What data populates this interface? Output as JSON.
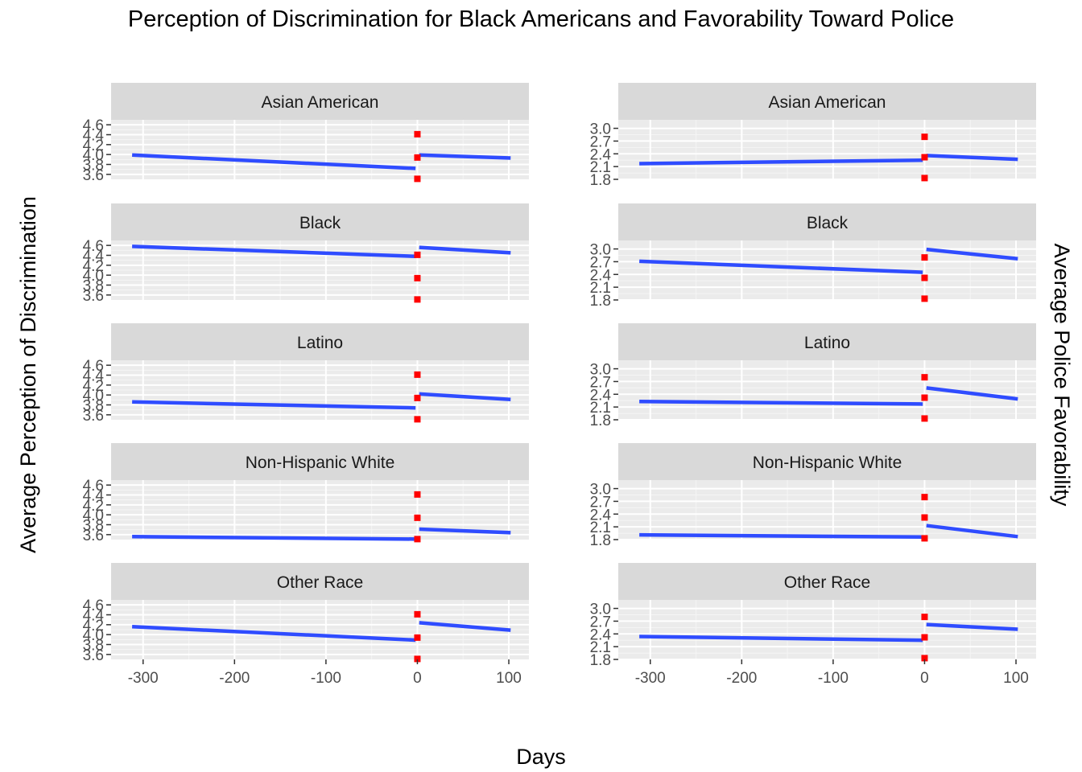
{
  "chart_data": {
    "type": "line",
    "title": "Perception of Discrimination for Black Americans and Favorability Toward Police",
    "xlabel": "Days",
    "x_ticks": [
      -300,
      -200,
      -100,
      0,
      100
    ],
    "xlim": [
      -335,
      122
    ],
    "series_color": "#2f4cff",
    "marker_color": "#ff0000",
    "panel_background": "#ebebeb",
    "strip_background": "#d9d9d9",
    "grid": true,
    "columns": [
      {
        "ylabel": "Average Perception of Discrimination",
        "ylabel_side": "left",
        "ylim": [
          3.5,
          4.7
        ],
        "y_ticks": [
          3.6,
          3.8,
          4.0,
          4.2,
          4.4,
          4.6
        ],
        "y_tick_labels": [
          "3.6",
          "3.8",
          "4.0",
          "4.2",
          "4.4",
          "4.6"
        ],
        "panels": [
          {
            "label": "Asian American",
            "pre": [
              [
                -312,
                3.99
              ],
              [
                -2,
                3.72
              ]
            ],
            "post": [
              [
                2,
                3.99
              ],
              [
                102,
                3.93
              ]
            ],
            "markers": [
              4.41,
              3.94,
              3.51
            ]
          },
          {
            "label": "Black",
            "pre": [
              [
                -312,
                4.58
              ],
              [
                -2,
                4.38
              ]
            ],
            "post": [
              [
                2,
                4.56
              ],
              [
                102,
                4.45
              ]
            ],
            "markers": [
              4.41,
              3.94,
              3.51
            ]
          },
          {
            "label": "Latino",
            "pre": [
              [
                -312,
                3.86
              ],
              [
                -2,
                3.74
              ]
            ],
            "post": [
              [
                2,
                4.02
              ],
              [
                102,
                3.91
              ]
            ],
            "markers": [
              4.41,
              3.94,
              3.51
            ]
          },
          {
            "label": "Non-Hispanic White",
            "pre": [
              [
                -312,
                3.56
              ],
              [
                -2,
                3.51
              ]
            ],
            "post": [
              [
                2,
                3.71
              ],
              [
                102,
                3.64
              ]
            ],
            "markers": [
              4.41,
              3.94,
              3.51
            ]
          },
          {
            "label": "Other Race",
            "pre": [
              [
                -312,
                4.16
              ],
              [
                -2,
                3.89
              ]
            ],
            "post": [
              [
                2,
                4.24
              ],
              [
                102,
                4.09
              ]
            ],
            "markers": [
              4.41,
              3.94,
              3.51
            ]
          }
        ]
      },
      {
        "ylabel": "Average Police Favorability",
        "ylabel_side": "right",
        "ylim": [
          1.8,
          3.2
        ],
        "y_ticks": [
          1.8,
          2.1,
          2.4,
          2.7,
          3.0
        ],
        "y_tick_labels": [
          "1.8",
          "2.1",
          "2.4",
          "2.7",
          "3.0"
        ],
        "panels": [
          {
            "label": "Asian American",
            "pre": [
              [
                -312,
                2.17
              ],
              [
                -2,
                2.25
              ]
            ],
            "post": [
              [
                2,
                2.36
              ],
              [
                102,
                2.27
              ]
            ],
            "markers": [
              2.8,
              2.32,
              1.83
            ]
          },
          {
            "label": "Black",
            "pre": [
              [
                -312,
                2.71
              ],
              [
                -2,
                2.45
              ]
            ],
            "post": [
              [
                2,
                2.99
              ],
              [
                102,
                2.77
              ]
            ],
            "markers": [
              2.8,
              2.32,
              1.83
            ]
          },
          {
            "label": "Latino",
            "pre": [
              [
                -312,
                2.23
              ],
              [
                -2,
                2.17
              ]
            ],
            "post": [
              [
                2,
                2.55
              ],
              [
                102,
                2.29
              ]
            ],
            "markers": [
              2.8,
              2.32,
              1.83
            ]
          },
          {
            "label": "Non-Hispanic White",
            "pre": [
              [
                -312,
                1.91
              ],
              [
                -2,
                1.86
              ]
            ],
            "post": [
              [
                2,
                2.13
              ],
              [
                102,
                1.87
              ]
            ],
            "markers": [
              2.8,
              2.32,
              1.83
            ]
          },
          {
            "label": "Other Race",
            "pre": [
              [
                -312,
                2.34
              ],
              [
                -2,
                2.25
              ]
            ],
            "post": [
              [
                2,
                2.62
              ],
              [
                102,
                2.51
              ]
            ],
            "markers": [
              2.8,
              2.32,
              1.83
            ]
          }
        ]
      }
    ]
  }
}
